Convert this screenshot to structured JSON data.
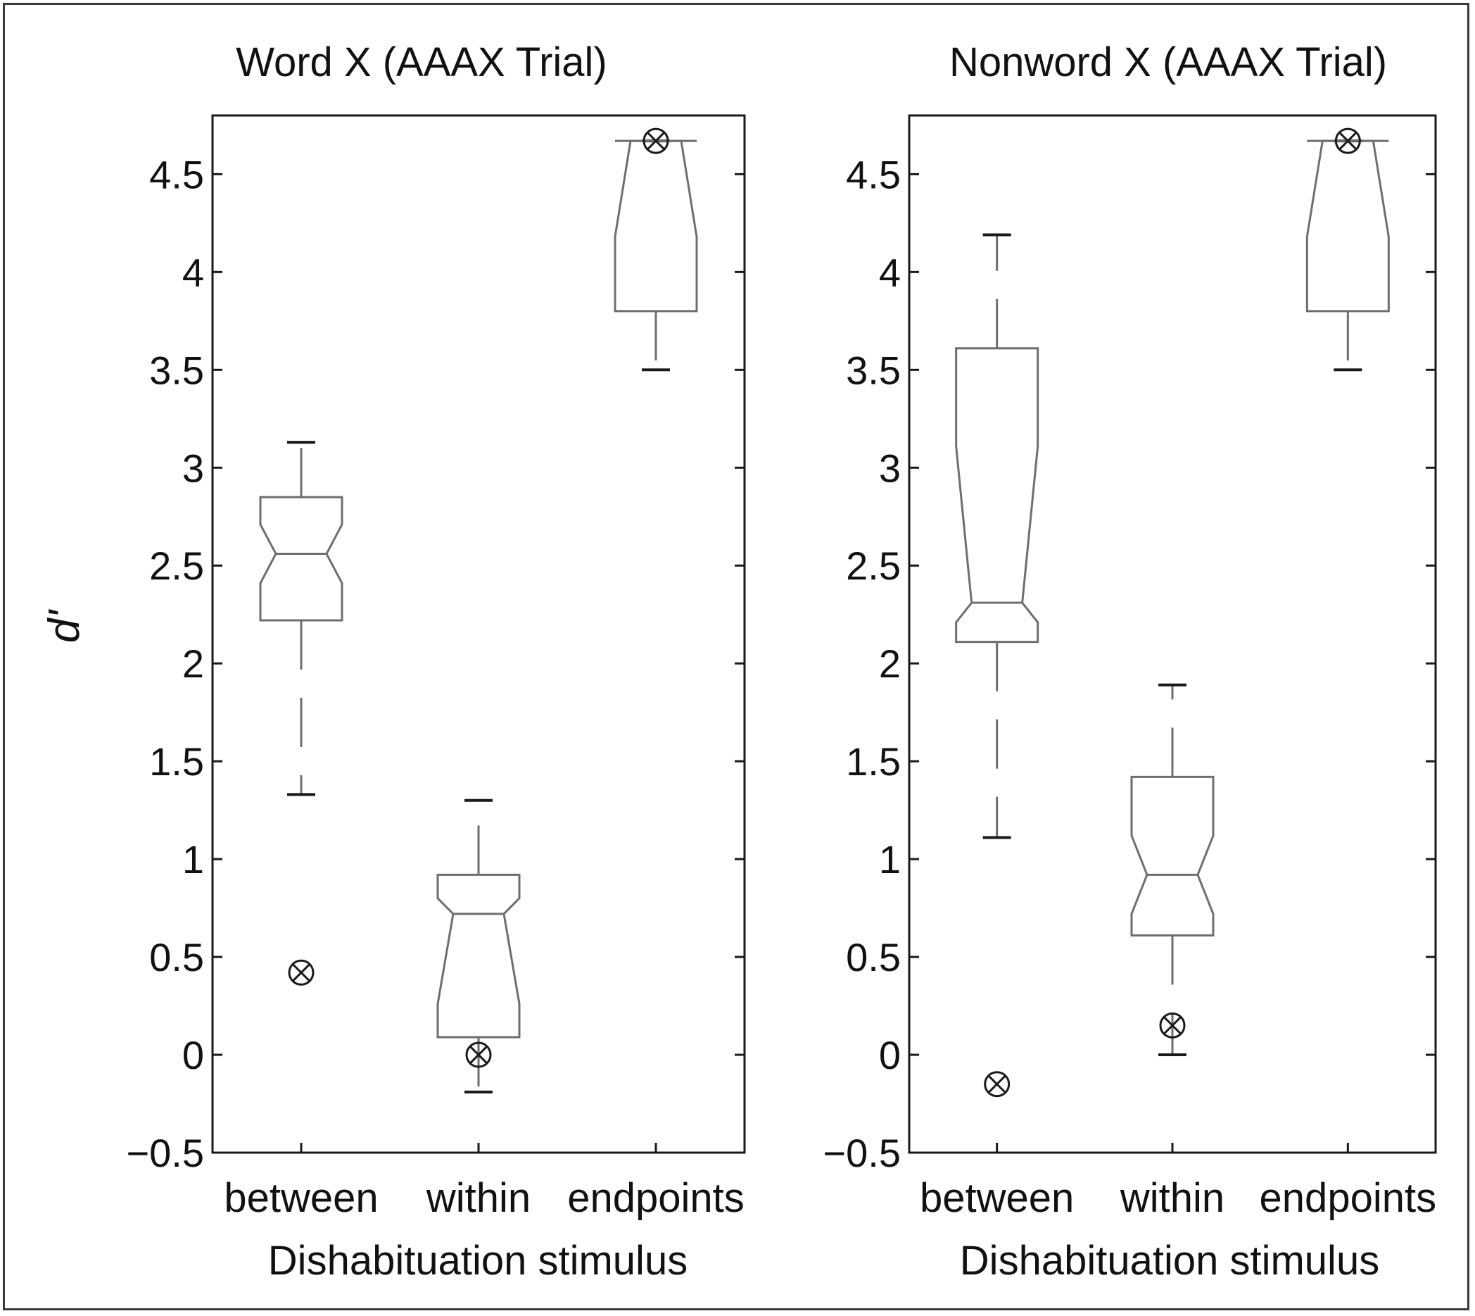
{
  "figure": {
    "ylabel": "d'",
    "colors": {
      "axis": "#1a1a1a",
      "box": "#6e6e6e",
      "whisker": "#6e6e6e",
      "text": "#111111"
    }
  },
  "chart_data": [
    {
      "type": "box",
      "title": "Word X (AAAX Trial)",
      "xlabel": "Dishabituation stimulus",
      "ylabel": "d'",
      "ylim": [
        -0.5,
        4.8
      ],
      "yticks": [
        -0.5,
        0,
        0.5,
        1,
        1.5,
        2,
        2.5,
        3,
        3.5,
        4,
        4.5
      ],
      "ytick_labels": [
        "−0.5",
        "0",
        "0.5",
        "1",
        "1.5",
        "2",
        "2.5",
        "3",
        "3.5",
        "4",
        "4.5"
      ],
      "categories": [
        "between",
        "within",
        "endpoints"
      ],
      "boxes": [
        {
          "category": "between",
          "whisker_low": 1.33,
          "q1": 2.22,
          "median": 2.56,
          "q3": 2.85,
          "whisker_high": 3.13,
          "notch_low": 2.41,
          "notch_high": 2.71,
          "outliers": [
            0.42
          ]
        },
        {
          "category": "within",
          "whisker_low": -0.19,
          "q1": 0.09,
          "median": 0.72,
          "q3": 0.92,
          "whisker_high": 1.3,
          "notch_low": 0.26,
          "notch_high": 0.8,
          "outliers": [
            0.0
          ]
        },
        {
          "category": "endpoints",
          "whisker_low": 3.5,
          "q1": 3.8,
          "median": 4.67,
          "q3": 4.67,
          "whisker_high": 4.67,
          "notch_low": 4.18,
          "notch_high": 4.67,
          "outliers": [
            4.67
          ]
        }
      ]
    },
    {
      "type": "box",
      "title": "Nonword X (AAAX Trial)",
      "xlabel": "Dishabituation stimulus",
      "ylabel": "",
      "ylim": [
        -0.5,
        4.8
      ],
      "yticks": [
        -0.5,
        0,
        0.5,
        1,
        1.5,
        2,
        2.5,
        3,
        3.5,
        4,
        4.5
      ],
      "ytick_labels": [
        "−0.5",
        "0",
        "0.5",
        "1",
        "1.5",
        "2",
        "2.5",
        "3",
        "3.5",
        "4",
        "4.5"
      ],
      "categories": [
        "between",
        "within",
        "endpoints"
      ],
      "boxes": [
        {
          "category": "between",
          "whisker_low": 1.11,
          "q1": 2.11,
          "median": 2.31,
          "q3": 3.61,
          "whisker_high": 4.19,
          "notch_low": 2.21,
          "notch_high": 3.11,
          "outliers": [
            -0.15
          ]
        },
        {
          "category": "within",
          "whisker_low": 0.0,
          "q1": 0.61,
          "median": 0.92,
          "q3": 1.42,
          "whisker_high": 1.89,
          "notch_low": 0.72,
          "notch_high": 1.12,
          "outliers": [
            0.15
          ]
        },
        {
          "category": "endpoints",
          "whisker_low": 3.5,
          "q1": 3.8,
          "median": 4.67,
          "q3": 4.67,
          "whisker_high": 4.67,
          "notch_low": 4.18,
          "notch_high": 4.67,
          "outliers": [
            4.67
          ]
        }
      ]
    }
  ]
}
